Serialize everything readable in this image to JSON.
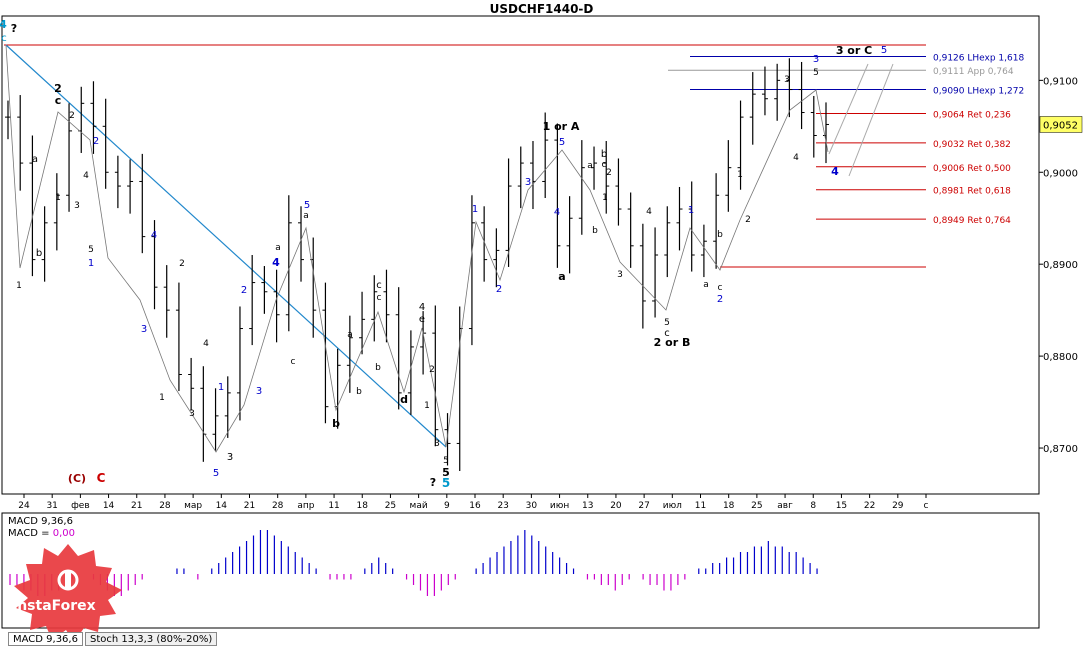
{
  "window": {
    "title": "USDCHF1440-D"
  },
  "chart_data": {
    "type": "candlestick",
    "symbol": "USDCHF",
    "timeframe": "D",
    "ylim": [
      0.865,
      0.917
    ],
    "y_ticks": [
      "0,9100",
      "0,9000",
      "0,8900",
      "0,8800",
      "0,8700"
    ],
    "y_tick_values": [
      0.91,
      0.9,
      0.89,
      0.88,
      0.87
    ],
    "x_ticks": [
      "24",
      "31",
      "фев",
      "14",
      "21",
      "28",
      "мар",
      "14",
      "21",
      "28",
      "апр",
      "11",
      "18",
      "25",
      "май",
      "9",
      "16",
      "23",
      "30",
      "июн",
      "13",
      "20",
      "27",
      "июл",
      "11",
      "18",
      "25",
      "авг",
      "8",
      "15",
      "22",
      "29",
      "с"
    ],
    "current_price": "0,9052",
    "price_path": [
      0.906,
      0.901,
      0.8905,
      0.8945,
      0.8975,
      0.9045,
      0.9075,
      0.905,
      0.9,
      0.8985,
      0.899,
      0.893,
      0.8875,
      0.885,
      0.878,
      0.8765,
      0.8715,
      0.8735,
      0.876,
      0.883,
      0.888,
      0.887,
      0.8845,
      0.8945,
      0.8905,
      0.885,
      0.8745,
      0.879,
      0.882,
      0.884,
      0.887,
      0.8845,
      0.876,
      0.881,
      0.8825,
      0.872,
      0.8705,
      0.883,
      0.8945,
      0.8905,
      0.8915,
      0.8985,
      0.901,
      0.899,
      0.9035,
      0.892,
      0.895,
      0.9005,
      0.901,
      0.8985,
      0.896,
      0.892,
      0.886,
      0.891,
      0.8945,
      0.896,
      0.891,
      0.8925,
      0.8975,
      0.9005,
      0.906,
      0.9085,
      0.908,
      0.91,
      0.909,
      0.9065,
      0.904,
      0.9052
    ],
    "levels": [
      {
        "label": "0,9126 LHexp 1,618",
        "value": 0.9126,
        "color": "#0000aa"
      },
      {
        "label": "0,9111 App 0,764",
        "value": 0.9111,
        "color": "#999999"
      },
      {
        "label": "0,9090 LHexp 1,272",
        "value": 0.909,
        "color": "#0000aa"
      },
      {
        "label": "0,9064 Ret 0,236",
        "value": 0.9064,
        "color": "#cc0000"
      },
      {
        "label": "0,9032 Ret 0,382",
        "value": 0.9032,
        "color": "#cc0000"
      },
      {
        "label": "0,9006 Ret 0,500",
        "value": 0.9006,
        "color": "#cc0000"
      },
      {
        "label": "0,8981 Ret 0,618",
        "value": 0.8981,
        "color": "#cc0000"
      },
      {
        "label": "0,8949 Ret 0,764",
        "value": 0.8949,
        "color": "#cc0000"
      }
    ],
    "wave_labels": [
      {
        "text": "4",
        "color": "#0099cc"
      },
      {
        "text": "c",
        "color": "#0099cc"
      },
      {
        "text": "?",
        "color": "#000000"
      },
      {
        "text": "2",
        "color": "#000000"
      },
      {
        "text": "c",
        "color": "#000000"
      },
      {
        "text": "2",
        "color": "#000000"
      },
      {
        "text": "2",
        "color": "#0000cc"
      },
      {
        "text": "a",
        "color": "#000000"
      },
      {
        "text": "4",
        "color": "#000000"
      },
      {
        "text": "1",
        "color": "#000000"
      },
      {
        "text": "3",
        "color": "#000000"
      },
      {
        "text": "5",
        "color": "#000000"
      },
      {
        "text": "1",
        "color": "#0000cc"
      },
      {
        "text": "b",
        "color": "#000000"
      },
      {
        "text": "1",
        "color": "#000000"
      },
      {
        "text": "4",
        "color": "#0000cc"
      },
      {
        "text": "2",
        "color": "#000000"
      },
      {
        "text": "3",
        "color": "#0000cc"
      },
      {
        "text": "1",
        "color": "#000000"
      },
      {
        "text": "4",
        "color": "#000000"
      },
      {
        "text": "3",
        "color": "#000000"
      },
      {
        "text": "1",
        "color": "#0000cc"
      },
      {
        "text": "5",
        "color": "#0000cc"
      },
      {
        "text": "3",
        "color": "#000000"
      },
      {
        "text": "2",
        "color": "#0000cc"
      },
      {
        "text": "3",
        "color": "#0000cc"
      },
      {
        "text": "4",
        "color": "#0000cc"
      },
      {
        "text": "a",
        "color": "#000000"
      },
      {
        "text": "5",
        "color": "#0000cc"
      },
      {
        "text": "a",
        "color": "#000000"
      },
      {
        "text": "c",
        "color": "#000000"
      },
      {
        "text": "b",
        "color": "#000000"
      },
      {
        "text": "b",
        "color": "#000000"
      },
      {
        "text": "c",
        "color": "#000000"
      },
      {
        "text": "c",
        "color": "#000000"
      },
      {
        "text": "a",
        "color": "#000000"
      },
      {
        "text": "b",
        "color": "#000000"
      },
      {
        "text": "4",
        "color": "#000000"
      },
      {
        "text": "e",
        "color": "#000000"
      },
      {
        "text": "d",
        "color": "#000000"
      },
      {
        "text": "2",
        "color": "#000000"
      },
      {
        "text": "1",
        "color": "#000000"
      },
      {
        "text": "3",
        "color": "#000000"
      },
      {
        "text": "5",
        "color": "#000000"
      },
      {
        "text": "5",
        "color": "#000000"
      },
      {
        "text": "5",
        "color": "#0099cc"
      },
      {
        "text": "?",
        "color": "#000000"
      },
      {
        "text": "1",
        "color": "#0000cc"
      },
      {
        "text": "2",
        "color": "#0000cc"
      },
      {
        "text": "3",
        "color": "#0000cc"
      },
      {
        "text": "4",
        "color": "#0000cc"
      },
      {
        "text": "1 or A",
        "color": "#000000"
      },
      {
        "text": "5",
        "color": "#0000cc"
      },
      {
        "text": "a",
        "color": "#000000"
      },
      {
        "text": "b",
        "color": "#000000"
      },
      {
        "text": "c",
        "color": "#000000"
      },
      {
        "text": "2",
        "color": "#000000"
      },
      {
        "text": "1",
        "color": "#000000"
      },
      {
        "text": "b",
        "color": "#000000"
      },
      {
        "text": "a",
        "color": "#000000"
      },
      {
        "text": "3",
        "color": "#000000"
      },
      {
        "text": "4",
        "color": "#000000"
      },
      {
        "text": "5",
        "color": "#000000"
      },
      {
        "text": "c",
        "color": "#000000"
      },
      {
        "text": "2 or B",
        "color": "#000000"
      },
      {
        "text": "1",
        "color": "#0000cc"
      },
      {
        "text": "b",
        "color": "#000000"
      },
      {
        "text": "a",
        "color": "#000000"
      },
      {
        "text": "c",
        "color": "#000000"
      },
      {
        "text": "2",
        "color": "#0000cc"
      },
      {
        "text": "1",
        "color": "#000000"
      },
      {
        "text": "2",
        "color": "#000000"
      },
      {
        "text": "3",
        "color": "#000000"
      },
      {
        "text": "4",
        "color": "#000000"
      },
      {
        "text": "3",
        "color": "#0000cc"
      },
      {
        "text": "5",
        "color": "#000000"
      },
      {
        "text": "3 or C",
        "color": "#000000"
      },
      {
        "text": "5",
        "color": "#0000cc"
      },
      {
        "text": "4",
        "color": "#0000cc"
      },
      {
        "text": "(C)",
        "color": "#990000"
      },
      {
        "text": "C",
        "color": "#cc0000"
      }
    ]
  },
  "macd": {
    "label1": "MACD 9,36,6",
    "label2_prefix": "MACD = ",
    "label2_value": "0,00",
    "value_color": "#cc00cc",
    "hist": [
      -2,
      -2,
      -3,
      -3,
      -4,
      -4,
      -3,
      -3,
      -2,
      -1,
      0,
      0,
      -1,
      -2,
      -3,
      -4,
      -4,
      -3,
      -2,
      -1,
      0,
      0,
      0,
      0,
      1,
      1,
      0,
      -1,
      0,
      1,
      2,
      3,
      4,
      5,
      6,
      7,
      8,
      8,
      7,
      6,
      5,
      4,
      3,
      2,
      1,
      0,
      -1,
      -1,
      -1,
      -1,
      0,
      1,
      2,
      3,
      2,
      1,
      0,
      -1,
      -2,
      -3,
      -4,
      -4,
      -3,
      -2,
      -1,
      0,
      0,
      1,
      2,
      3,
      4,
      5,
      6,
      7,
      8,
      7,
      6,
      5,
      4,
      3,
      2,
      1,
      0,
      -1,
      -1,
      -2,
      -2,
      -3,
      -2,
      -1,
      0,
      -1,
      -2,
      -2,
      -3,
      -3,
      -2,
      -1,
      0,
      1,
      1,
      2,
      2,
      3,
      3,
      4,
      4,
      5,
      5,
      6,
      5,
      5,
      4,
      4,
      3,
      2,
      1,
      0
    ]
  },
  "tabs": [
    "MACD 9,36,6",
    "Stoch 13,3,3 (80%-20%)"
  ],
  "brand": {
    "name": "InstaForex",
    "color": "#e8383d"
  }
}
